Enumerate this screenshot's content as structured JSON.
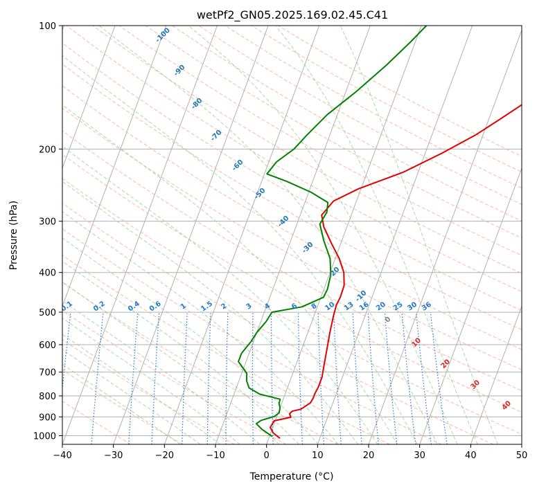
{
  "chart_data": {
    "type": "line",
    "title": "wetPf2_GN05.2025.169.02.45.C41",
    "xlabel": "Temperature (°C)",
    "ylabel": "Pressure (hPa)",
    "xlim": [
      -40,
      50
    ],
    "ylim": [
      1050,
      100
    ],
    "y_scale": "log",
    "grid": true,
    "x_ticks": [
      -40,
      -30,
      -20,
      -10,
      0,
      10,
      20,
      30,
      40,
      50
    ],
    "y_ticks": [
      1000,
      900,
      800,
      700,
      600,
      500,
      400,
      300,
      200,
      100
    ],
    "series": [
      {
        "color": "#e00000",
        "points": [
          [
            2.2,
            1015
          ],
          [
            0.5,
            985
          ],
          [
            -0.5,
            955
          ],
          [
            -0.2,
            920
          ],
          [
            2.8,
            902
          ],
          [
            2.3,
            885
          ],
          [
            2.6,
            872
          ],
          [
            4.2,
            862
          ],
          [
            5.6,
            832
          ],
          [
            5.8,
            810
          ],
          [
            5.8,
            790
          ],
          [
            6.0,
            760
          ],
          [
            6.0,
            720
          ],
          [
            5.6,
            680
          ],
          [
            5.0,
            620
          ],
          [
            4.3,
            560
          ],
          [
            3.8,
            510
          ],
          [
            3.6,
            480
          ],
          [
            3.8,
            460
          ],
          [
            3.7,
            430
          ],
          [
            2.7,
            400
          ],
          [
            0.8,
            370
          ],
          [
            -1.8,
            340
          ],
          [
            -4.5,
            310
          ],
          [
            -5.8,
            290
          ],
          [
            -4.5,
            268
          ],
          [
            -0.5,
            250
          ],
          [
            7.0,
            228
          ],
          [
            13.2,
            205
          ],
          [
            18.5,
            185
          ],
          [
            22.0,
            170
          ],
          [
            27.0,
            150
          ],
          [
            34.0,
            128
          ],
          [
            42.0,
            110
          ],
          [
            47.5,
            100
          ]
        ]
      },
      {
        "color": "#008000",
        "points": [
          [
            0.6,
            1005
          ],
          [
            -2.0,
            965
          ],
          [
            -3.5,
            935
          ],
          [
            -2.8,
            918
          ],
          [
            -0.5,
            898
          ],
          [
            0.2,
            880
          ],
          [
            0.0,
            855
          ],
          [
            -0.5,
            835
          ],
          [
            -0.6,
            815
          ],
          [
            -5.0,
            792
          ],
          [
            -7.5,
            765
          ],
          [
            -8.5,
            735
          ],
          [
            -9.0,
            705
          ],
          [
            -11.5,
            660
          ],
          [
            -11.5,
            630
          ],
          [
            -10.5,
            590
          ],
          [
            -10.0,
            560
          ],
          [
            -9.0,
            528
          ],
          [
            -8.5,
            500
          ],
          [
            -3.0,
            485
          ],
          [
            0.5,
            460
          ],
          [
            0.7,
            440
          ],
          [
            0.3,
            405
          ],
          [
            -1.0,
            370
          ],
          [
            -3.5,
            335
          ],
          [
            -5.5,
            305
          ],
          [
            -5.0,
            285
          ],
          [
            -5.5,
            270
          ],
          [
            -9.5,
            255
          ],
          [
            -15.0,
            240
          ],
          [
            -19.5,
            230
          ],
          [
            -18.5,
            215
          ],
          [
            -16.0,
            200
          ],
          [
            -14.5,
            185
          ],
          [
            -12.0,
            165
          ],
          [
            -8.0,
            145
          ],
          [
            -4.0,
            125
          ],
          [
            -1.0,
            110
          ],
          [
            1.0,
            100
          ]
        ]
      }
    ],
    "dry_adiabat_labels": [
      "-100",
      "-90",
      "-80",
      "-70",
      "-60",
      "-50",
      "-40",
      "-30",
      "-20",
      "-10",
      "0",
      "10",
      "20",
      "30",
      "40"
    ],
    "mixing_ratio_labels": [
      "0.1",
      "0.2",
      "0.4",
      "0.6",
      "1",
      "1.5",
      "2",
      "3",
      "4",
      "6",
      "8",
      "10",
      "13",
      "16",
      "20",
      "25",
      "30",
      "36"
    ],
    "colors": {
      "isotherm": "#7f7f7f",
      "dry_adiabat": "#ff9f7f",
      "moist_adiabat": "#90c890",
      "mixing_ratio": "#1e78d0",
      "blue_label": "#1f77b4",
      "red_label": "#d62728",
      "grey_label": "#7f7f7f"
    }
  }
}
